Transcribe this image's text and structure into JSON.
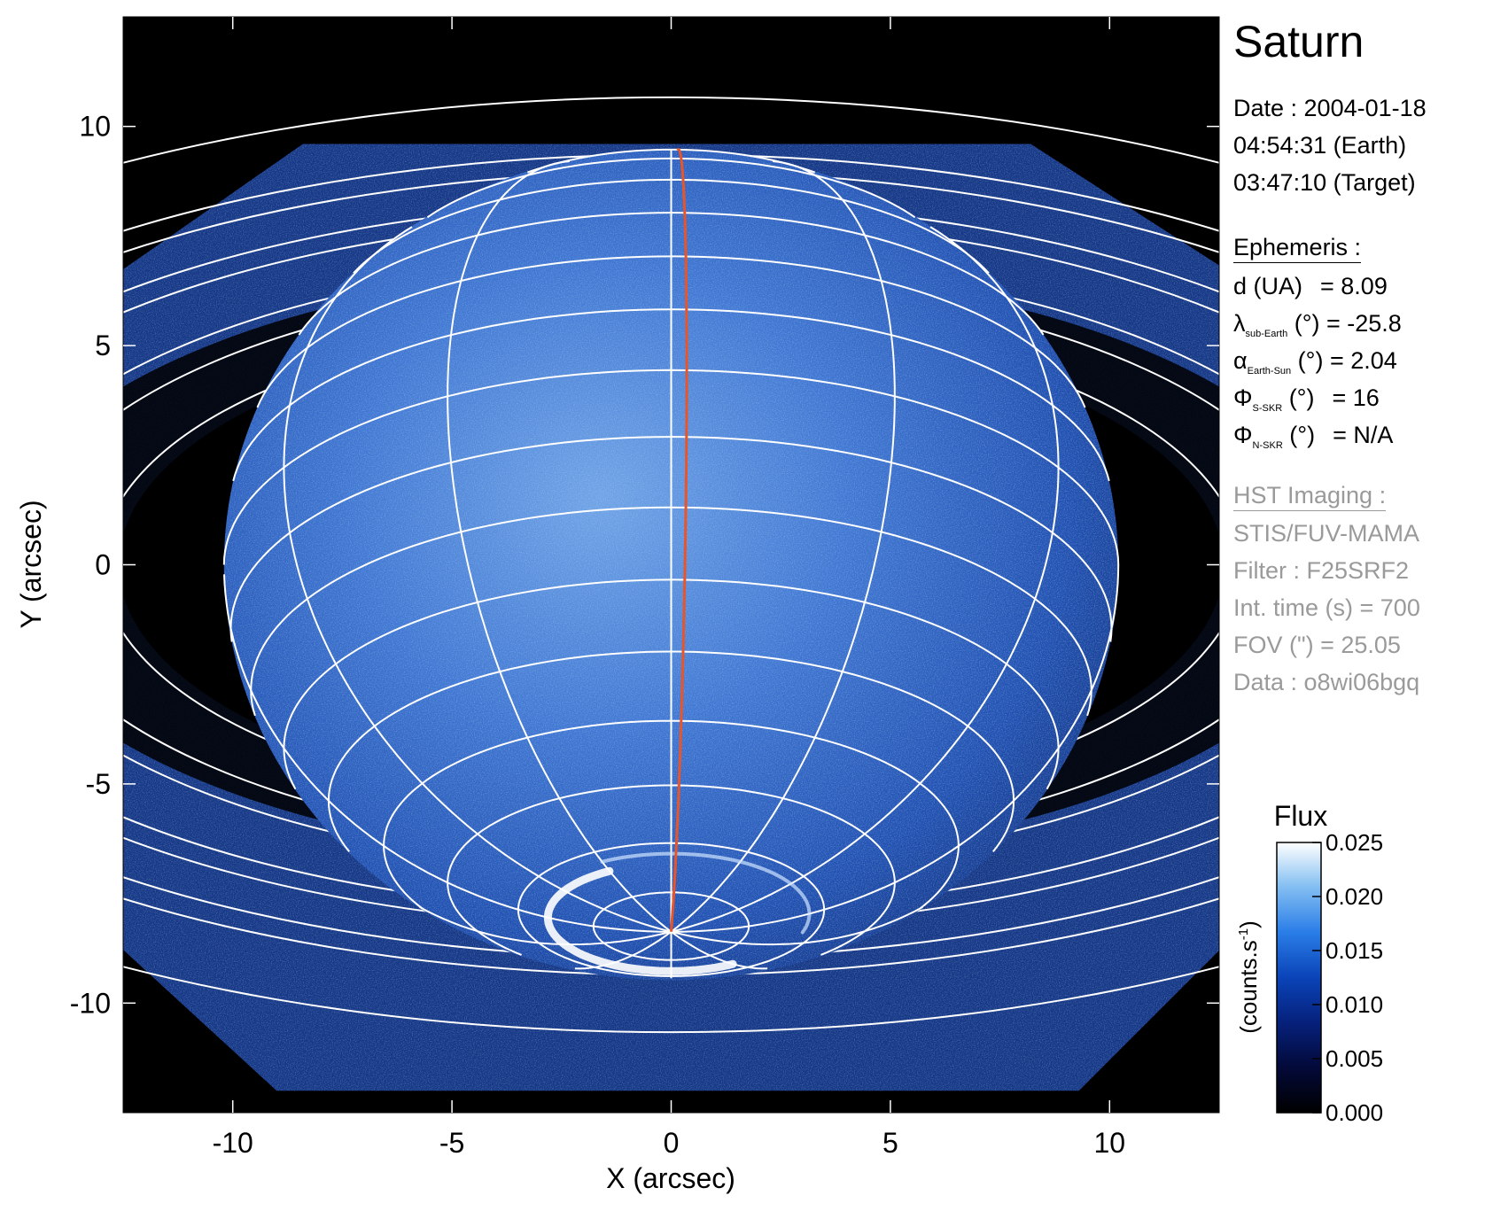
{
  "figure": {
    "title": "Saturn",
    "date_line": "Date : 2004-01-18",
    "earth_time": "04:54:31 (Earth)",
    "target_time": "03:47:10 (Target)"
  },
  "ephemeris": {
    "heading": "Ephemeris :",
    "d_label": "d (UA)",
    "d_value": "= 8.09",
    "lambda_sym": "λ",
    "lambda_sub": "sub-Earth",
    "lambda_unit": "(°)",
    "lambda_value": "= -25.8",
    "alpha_sym": "α",
    "alpha_sub": "Earth-Sun",
    "alpha_unit": "(°)",
    "alpha_value": "= 2.04",
    "phi_sym": "Φ",
    "phi_s_sub": "S-SKR",
    "phi_s_unit": "(°)",
    "phi_s_value": "= 16",
    "phi_n_sub": "N-SKR",
    "phi_n_unit": "(°)",
    "phi_n_value": "= N/A"
  },
  "hst": {
    "heading": "HST Imaging :",
    "instrument": "STIS/FUV-MAMA",
    "filter": "Filter : F25SRF2",
    "int_time": "Int. time (s) = 700",
    "fov": "FOV (\") = 25.05",
    "data_id": "Data : o8wi06bgq"
  },
  "axes": {
    "xlabel": "X (arcsec)",
    "ylabel": "Y (arcsec)",
    "xlim": [
      -12.5,
      12.5
    ],
    "ylim": [
      -12.5,
      12.5
    ],
    "xticks": [
      -10,
      -5,
      0,
      5,
      10
    ],
    "yticks": [
      -10,
      -5,
      0,
      5,
      10
    ],
    "tick_labels_x": [
      "-10",
      "-5",
      "0",
      "5",
      "10"
    ],
    "tick_labels_y": [
      "-10",
      "-5",
      "0",
      "5",
      "10"
    ]
  },
  "colorbar": {
    "title": "Flux",
    "unit_label": "(counts.s",
    "unit_sup": "-1",
    "unit_close": ")",
    "range": [
      0.0,
      0.025
    ],
    "tick_values": [
      0.0,
      0.005,
      0.01,
      0.015,
      0.02,
      0.025
    ],
    "tick_labels": [
      "0.000",
      "0.005",
      "0.010",
      "0.015",
      "0.020",
      "0.025"
    ],
    "colors": [
      "#000000",
      "#030a3a",
      "#06207a",
      "#0a44b8",
      "#2b7ee8",
      "#86c0f2",
      "#ffffff"
    ]
  },
  "colors": {
    "background": "#000000",
    "planet": "#2f66c6",
    "grid": "#ffffff",
    "meridian": "#e8552a",
    "aurora": "#ffffff"
  },
  "planet": {
    "center_arcsec": [
      0.0,
      0.0
    ],
    "equatorial_radius_arcsec": 10.2,
    "polar_radius_arcsec": 9.3,
    "sub_earth_latitude_deg": -25.8
  }
}
